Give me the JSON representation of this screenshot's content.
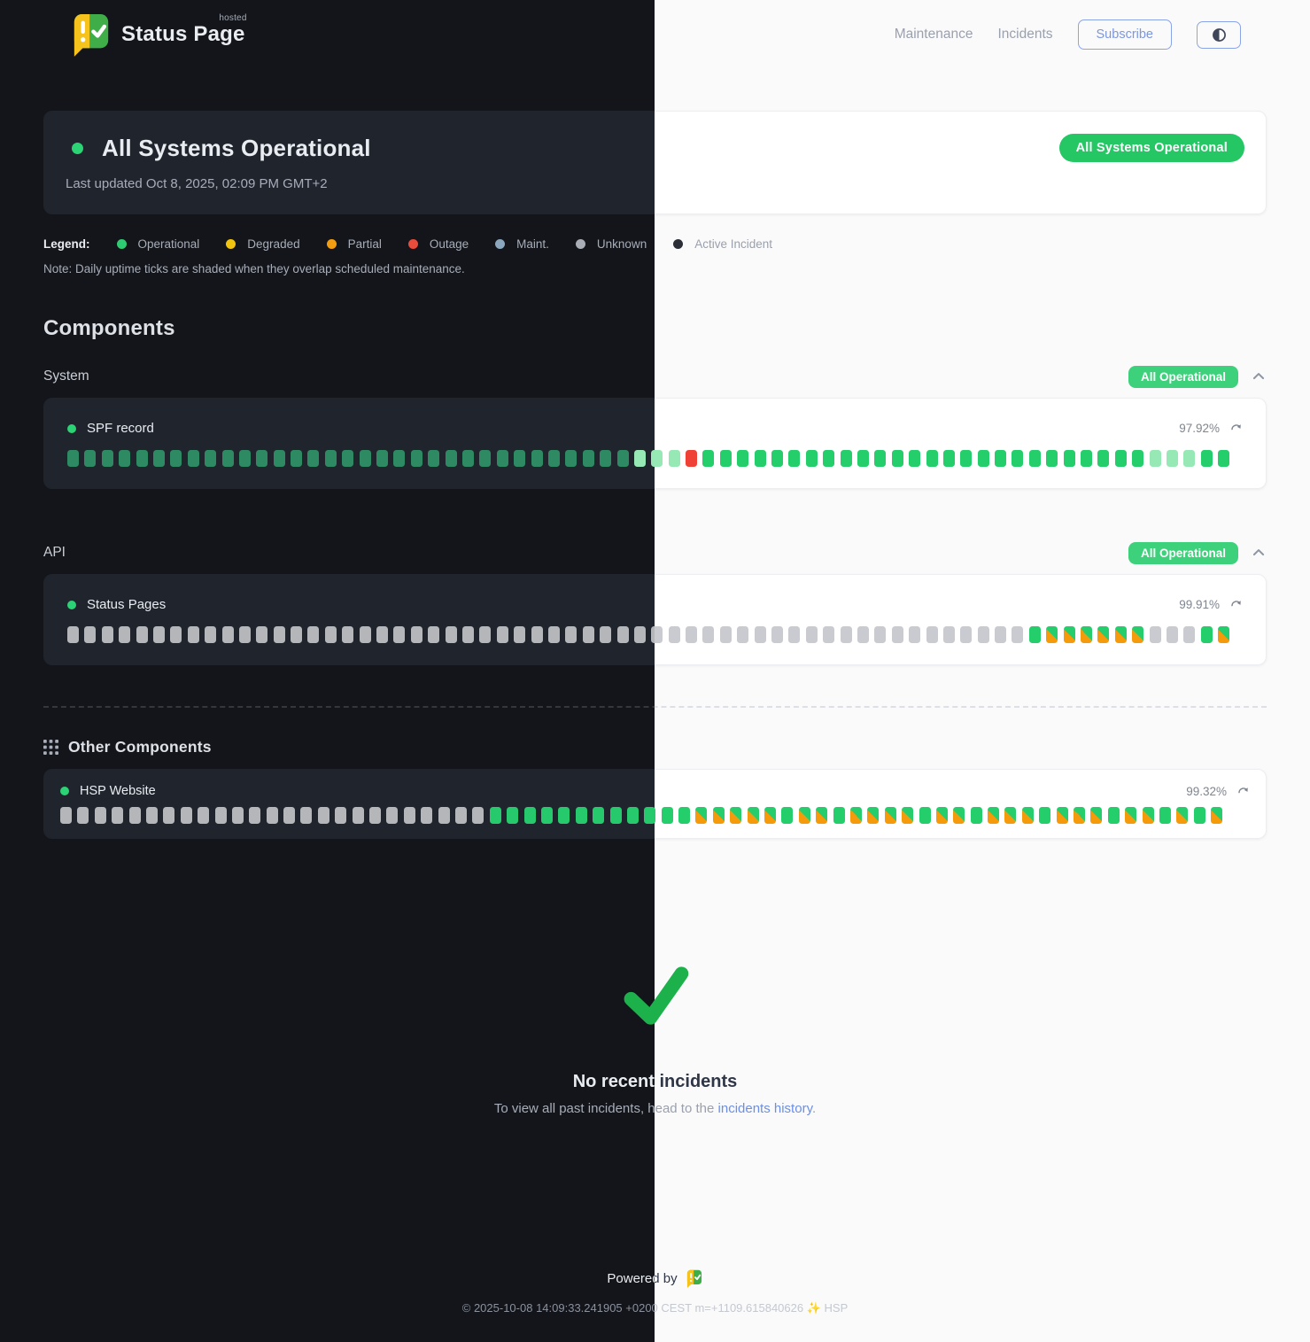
{
  "header": {
    "brand": "Status Page",
    "brand_sup": "hosted",
    "nav": [
      {
        "label": "Maintenance"
      },
      {
        "label": "Incidents"
      }
    ],
    "subscribe_label": "Subscribe"
  },
  "hero": {
    "title": "All Systems Operational",
    "last_updated": "Last updated Oct 8, 2025, 02:09 PM GMT+2",
    "badge": "All Systems Operational"
  },
  "legend": {
    "title": "Legend:",
    "items": [
      {
        "label": "Operational",
        "color": "#2ecc71"
      },
      {
        "label": "Degraded",
        "color": "#f1c40f"
      },
      {
        "label": "Partial",
        "color": "#f39c12"
      },
      {
        "label": "Outage",
        "color": "#e74c3c"
      },
      {
        "label": "Maint.",
        "color": "#8aa7bd"
      },
      {
        "label": "Unknown",
        "color": "#a9adb5"
      },
      {
        "label": "Active Incident",
        "color": "#2a2e36"
      }
    ],
    "note": "Note: Daily uptime ticks are shaded when they overlap scheduled maintenance."
  },
  "components": {
    "heading": "Components",
    "tick_legend": {
      "D": "operational (dark-muted)",
      "G": "operational",
      "p": "operational (faded)",
      "R": "outage",
      "U": "unknown",
      "M": "operational + scheduled maintenance"
    },
    "groups": [
      {
        "name": "System",
        "badge": "All Operational",
        "items": [
          {
            "name": "SPF record",
            "uptime": "97.92%",
            "ticks": "DDDDDDDDDDDDDDDDDDDDDDDDDDDDDDDDDpppRGGGGGGGGGGGGGGGGGGGGGGGGGGpppGG"
          }
        ]
      },
      {
        "name": "API",
        "badge": "All Operational",
        "items": [
          {
            "name": "Status Pages",
            "uptime": "99.91%",
            "ticks": "UUUUUUUUUUUUUUUUUUUUUUUUUUUUUUUUUUUUUUUUUUUUUUUUUUUUUUUUGMMMMMMUUUGM"
          }
        ]
      },
      {
        "name": "Other Components",
        "badge": null,
        "items": [
          {
            "name": "HSP Website",
            "uptime": "99.32%",
            "ticks": "UUUUUUUUUUUUUUUUUUUUUUUUUGGGGGGGGGGGGMMMMMGMMGMMMMGMMGMMMGMMMGMMGMGM"
          }
        ]
      }
    ]
  },
  "incidents": {
    "title": "No recent incidents",
    "subtitle_prefix": "To view all past incidents, head to the ",
    "link_label": "incidents history",
    "subtitle_suffix": "."
  },
  "footer": {
    "powered_by": "Powered by",
    "copyright": "© 2025-10-08 14:09:33.241905 +0200 CEST m=+1109.615840626 ✨ HSP"
  },
  "colors": {
    "operational_dot": "#2bd374",
    "overall_badge_green": "#24c763",
    "group_badge_green": "#3ed17b",
    "success_check": "#1db14b",
    "link_blue": "#6b8fe8"
  }
}
